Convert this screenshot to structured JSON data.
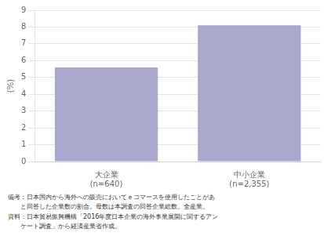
{
  "chart_data": {
    "type": "bar",
    "categories": [
      "大企業\n(n=640)",
      "中小企業\n(n=2,355)"
    ],
    "values": [
      5.6,
      8.1
    ],
    "color": "#a8a8cc",
    "ylabel": "(%)",
    "ylim": [
      0,
      9
    ],
    "yticks": [
      0,
      1,
      2,
      3,
      4,
      5,
      6,
      7,
      8,
      9
    ],
    "grid": true,
    "annotations": [
      "備考：日本国内から海外への販売においてｅコマースを使用したことがあ",
      "　　と回答した企業数の割合。母数は本調査の回答企業総数。全産業。",
      "資料：日本貿易振興機構「2016年度日本企業の海外事業展開に関するアン",
      "　　ケート調査」から経済産業省作成。"
    ]
  }
}
